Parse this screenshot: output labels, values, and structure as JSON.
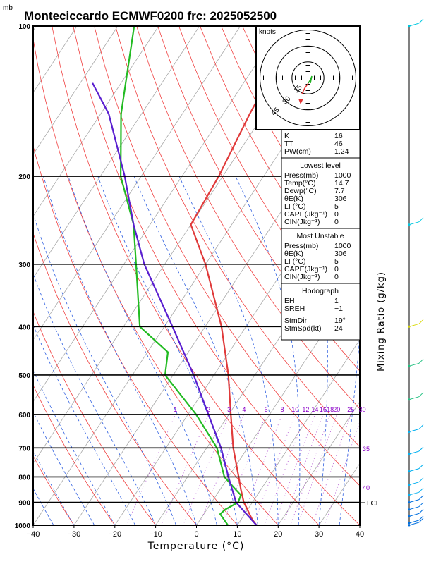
{
  "header": {
    "unit_mark": "mb",
    "title": "Monteciccardo ECMWF0200 frc: 2025052500"
  },
  "chart_data": {
    "type": "skew-t log-p",
    "xlabel": "Temperature (°C)",
    "ylabel_right": "Mixing Ratio (g/kg)",
    "xlim": [
      -40,
      40
    ],
    "ylim_mb": [
      1000,
      100
    ],
    "x_ticks": [
      "−40",
      "−30",
      "−20",
      "−10",
      "0",
      "10",
      "20",
      "30",
      "40"
    ],
    "pressure_ticks": [
      "100",
      "200",
      "300",
      "400",
      "500",
      "600",
      "700",
      "800",
      "900",
      "1000"
    ],
    "pressure_values": [
      100,
      200,
      300,
      400,
      500,
      600,
      700,
      800,
      900,
      1000
    ],
    "mixing_ratio_labels": [
      "1",
      "2",
      "3",
      "4",
      "6",
      "8",
      "10",
      "12",
      "14",
      "16",
      "18",
      "20",
      "25",
      "30"
    ],
    "mixing_ratio_values": [
      1,
      2,
      3,
      4,
      6,
      8,
      10,
      12,
      14,
      16,
      18,
      20,
      25,
      30
    ],
    "theta_e_labels": [
      "35",
      "40"
    ],
    "lcl_label": "LCL",
    "lcl_pressure": 900,
    "series": [
      {
        "name": "Temperature",
        "color": "#e03a3a",
        "points": [
          [
            1000,
            14.7
          ],
          [
            975,
            12.8
          ],
          [
            950,
            11.2
          ],
          [
            925,
            9.6
          ],
          [
            900,
            7.9
          ],
          [
            850,
            5.2
          ],
          [
            800,
            2.5
          ],
          [
            700,
            -3.5
          ],
          [
            600,
            -9.5
          ],
          [
            500,
            -16.5
          ],
          [
            400,
            -26.0
          ],
          [
            300,
            -40.0
          ],
          [
            250,
            -50.0
          ],
          [
            200,
            -51.0
          ],
          [
            150,
            -53.5
          ],
          [
            100,
            -56.0
          ]
        ]
      },
      {
        "name": "Dewpoint",
        "color": "#22bb22",
        "points": [
          [
            1000,
            7.7
          ],
          [
            950,
            4.0
          ],
          [
            930,
            4.5
          ],
          [
            900,
            6.5
          ],
          [
            870,
            6.0
          ],
          [
            850,
            4.0
          ],
          [
            800,
            -1.0
          ],
          [
            700,
            -7.5
          ],
          [
            600,
            -18.0
          ],
          [
            500,
            -32.0
          ],
          [
            450,
            -35.0
          ],
          [
            400,
            -46.0
          ],
          [
            300,
            -57.0
          ],
          [
            250,
            -64.0
          ],
          [
            200,
            -75.0
          ],
          [
            150,
            -85.0
          ],
          [
            100,
            -96.0
          ]
        ]
      },
      {
        "name": "Parcel",
        "color": "#5a1fd0",
        "points": [
          [
            1000,
            14.7
          ],
          [
            900,
            6.0
          ],
          [
            800,
            0.0
          ],
          [
            700,
            -6.5
          ],
          [
            600,
            -15.0
          ],
          [
            500,
            -25.0
          ],
          [
            400,
            -38.0
          ],
          [
            300,
            -55.0
          ],
          [
            250,
            -64.0
          ],
          [
            200,
            -74.0
          ],
          [
            150,
            -88.0
          ],
          [
            130,
            -97.0
          ]
        ]
      }
    ]
  },
  "stability_table": {
    "rows": [
      {
        "label": "K",
        "value": "16"
      },
      {
        "label": "TT",
        "value": "46"
      },
      {
        "label": "PW(cm)",
        "value": "1.24"
      }
    ]
  },
  "lowest_level": {
    "heading": "Lowest level",
    "rows": [
      {
        "label": "Press(mb)",
        "value": "1000"
      },
      {
        "label": "Temp(°C)",
        "value": "14.7"
      },
      {
        "label": "Dewp(°C)",
        "value": "7.7"
      },
      {
        "label": "θE(K)",
        "value": "306"
      },
      {
        "label": "LI (°C)",
        "value": "5"
      },
      {
        "label": "CAPE(Jkg⁻¹)",
        "value": "0"
      },
      {
        "label": "CIN(Jkg⁻¹)",
        "value": "0"
      }
    ]
  },
  "most_unstable": {
    "heading": "Most Unstable",
    "rows": [
      {
        "label": "Press(mb)",
        "value": "1000"
      },
      {
        "label": "θE(K)",
        "value": "306"
      },
      {
        "label": "LI (°C)",
        "value": "5"
      },
      {
        "label": "CAPE(Jkg⁻¹)",
        "value": "0"
      },
      {
        "label": "CIN(Jkg⁻¹)",
        "value": "0"
      }
    ]
  },
  "hodograph_table": {
    "heading": "Hodograph",
    "rows": [
      {
        "label": "EH",
        "value": "1"
      },
      {
        "label": "SREH",
        "value": "−1"
      },
      {
        "label": "StmDir",
        "value": "19°"
      },
      {
        "label": "StmSpd(kt)",
        "value": "24"
      }
    ]
  },
  "hodograph": {
    "unit_label": "knots",
    "ring_labels": [
      "15",
      "30",
      "45"
    ],
    "ring_values": [
      15,
      30,
      45
    ]
  }
}
